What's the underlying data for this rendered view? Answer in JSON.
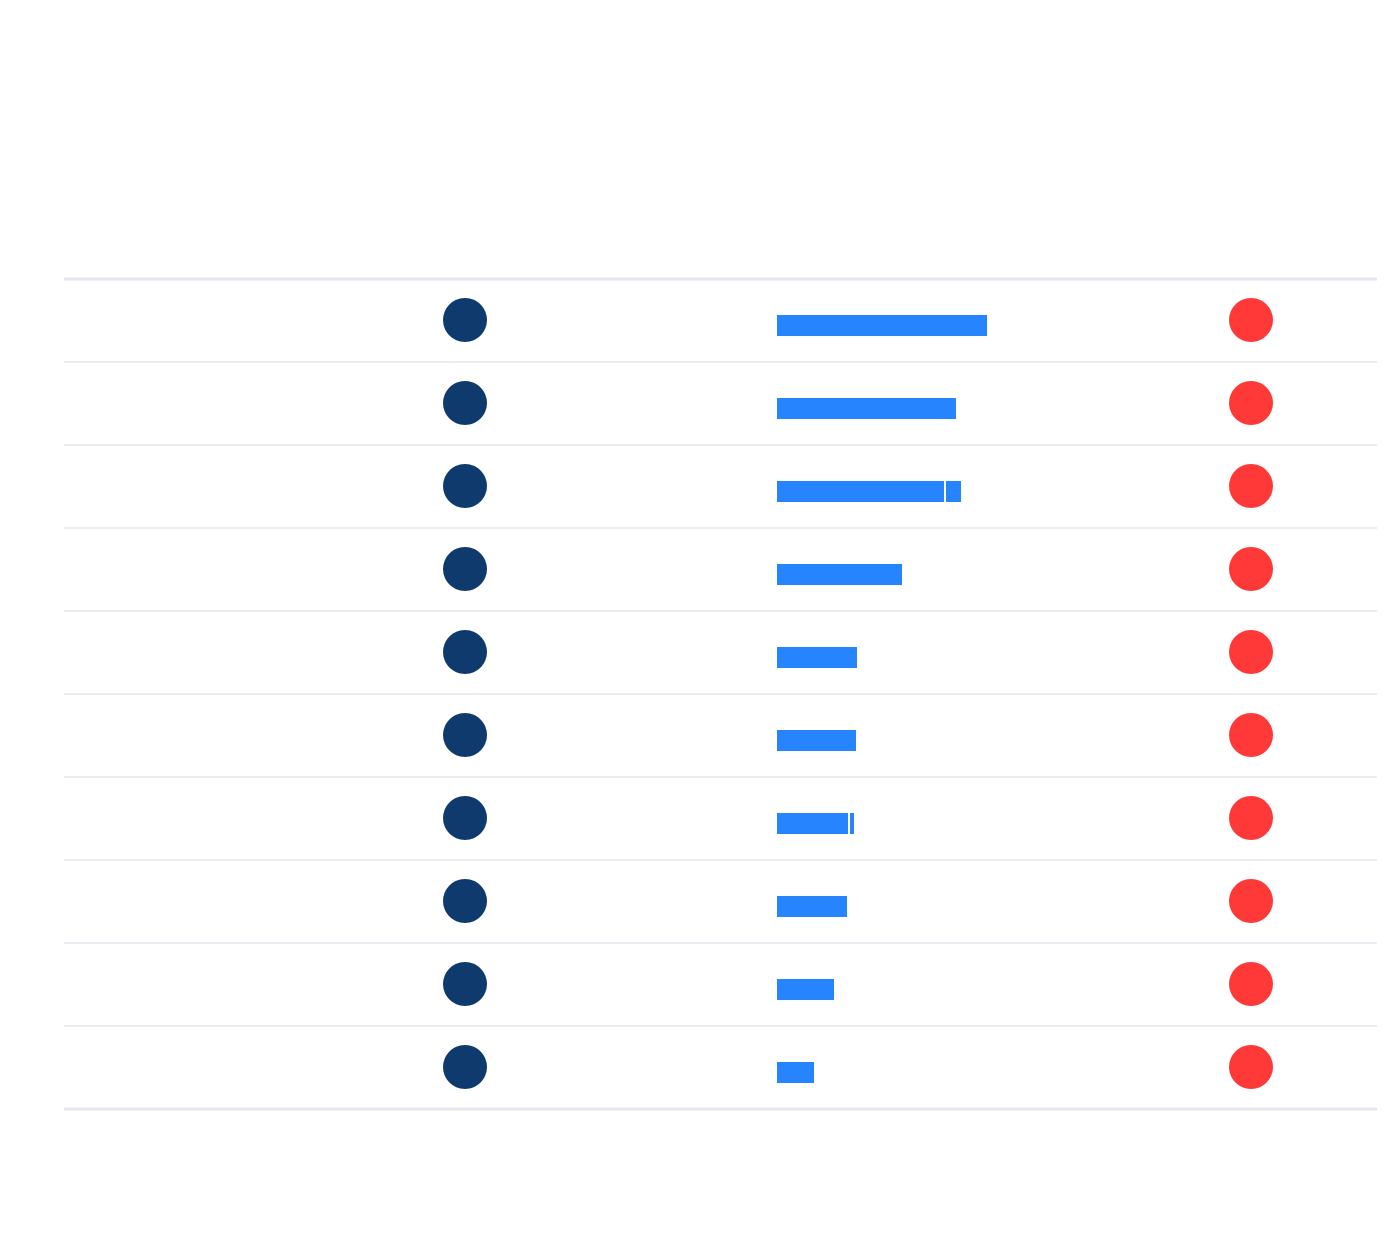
{
  "table": {
    "rows": [
      {
        "segments": [
          210
        ]
      },
      {
        "segments": [
          179
        ]
      },
      {
        "segments": [
          167,
          15
        ]
      },
      {
        "segments": [
          125
        ]
      },
      {
        "segments": [
          80
        ]
      },
      {
        "segments": [
          79
        ]
      },
      {
        "segments": [
          71,
          4
        ]
      },
      {
        "segments": [
          70
        ]
      },
      {
        "segments": [
          57
        ]
      },
      {
        "segments": [
          37
        ]
      }
    ]
  }
}
